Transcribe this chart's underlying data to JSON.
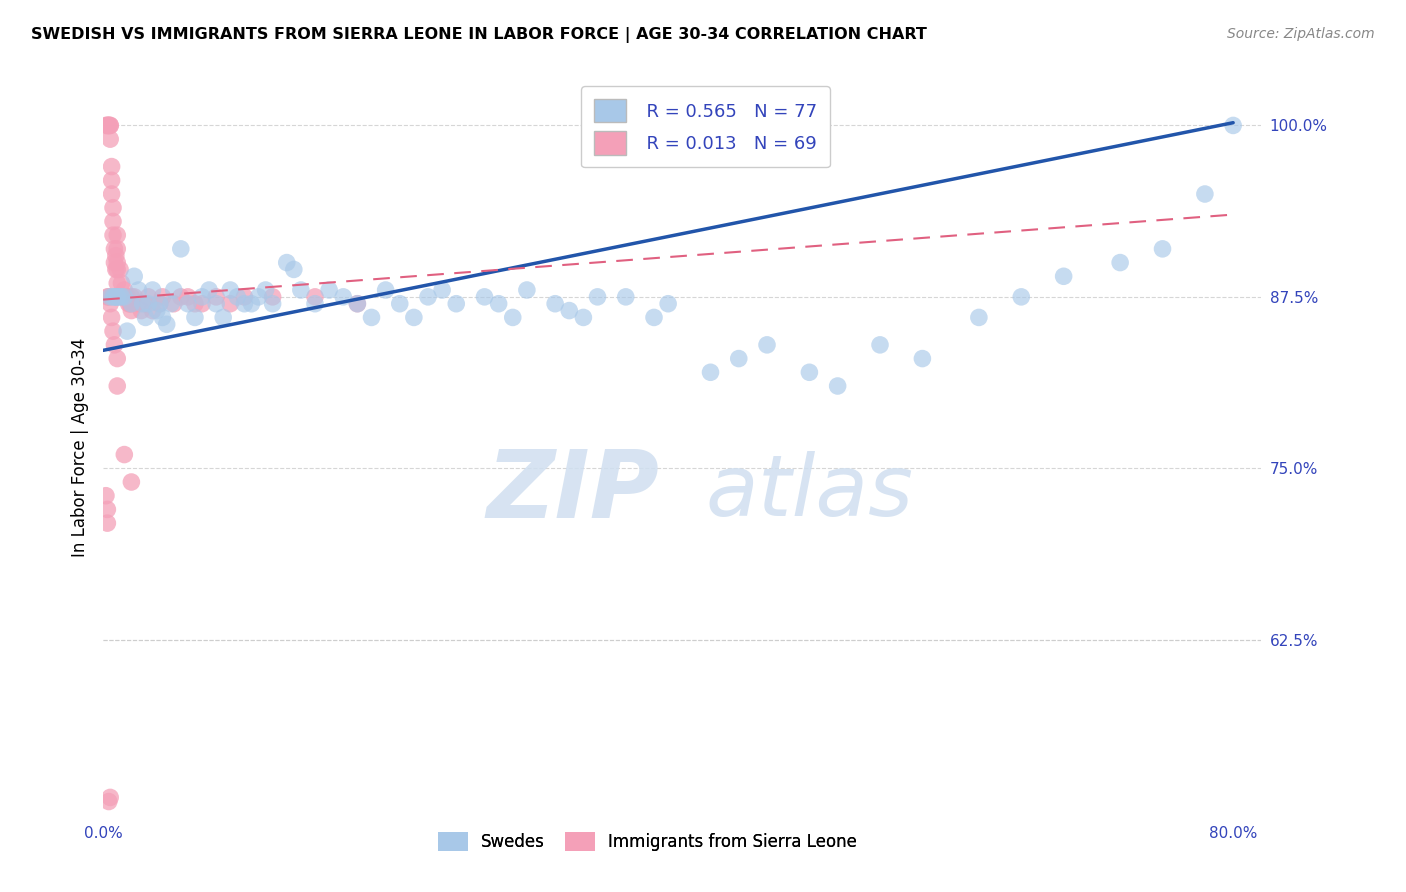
{
  "title": "SWEDISH VS IMMIGRANTS FROM SIERRA LEONE IN LABOR FORCE | AGE 30-34 CORRELATION CHART",
  "source": "Source: ZipAtlas.com",
  "ylabel": "In Labor Force | Age 30-34",
  "xlim": [
    0.0,
    0.82
  ],
  "ylim": [
    0.495,
    1.035
  ],
  "xticks": [
    0.0,
    0.1,
    0.2,
    0.3,
    0.4,
    0.5,
    0.6,
    0.7,
    0.8
  ],
  "xticklabels": [
    "0.0%",
    "",
    "",
    "",
    "",
    "",
    "",
    "",
    "80.0%"
  ],
  "yticks_right": [
    0.625,
    0.75,
    0.875,
    1.0
  ],
  "ytick_labels_right": [
    "62.5%",
    "75.0%",
    "87.5%",
    "100.0%"
  ],
  "legend_label1": "Swedes",
  "legend_label2": "Immigrants from Sierra Leone",
  "R_swedes": 0.565,
  "N_swedes": 77,
  "R_immigrants": 0.013,
  "N_immigrants": 69,
  "blue_color": "#a8c8e8",
  "pink_color": "#f4a0b8",
  "blue_line_color": "#2255aa",
  "pink_line_color": "#e06080",
  "grid_color": "#cccccc",
  "blue_line_x": [
    0.0,
    0.8
  ],
  "blue_line_y": [
    0.836,
    1.002
  ],
  "pink_line_x": [
    0.0,
    0.8
  ],
  "pink_line_y": [
    0.873,
    0.935
  ],
  "swedes_x": [
    0.005,
    0.007,
    0.008,
    0.009,
    0.01,
    0.01,
    0.012,
    0.013,
    0.015,
    0.017,
    0.02,
    0.022,
    0.025,
    0.028,
    0.03,
    0.032,
    0.035,
    0.038,
    0.04,
    0.042,
    0.045,
    0.048,
    0.05,
    0.055,
    0.06,
    0.065,
    0.07,
    0.075,
    0.08,
    0.085,
    0.09,
    0.095,
    0.1,
    0.105,
    0.11,
    0.115,
    0.12,
    0.13,
    0.135,
    0.14,
    0.15,
    0.16,
    0.17,
    0.18,
    0.19,
    0.2,
    0.21,
    0.22,
    0.23,
    0.24,
    0.25,
    0.27,
    0.28,
    0.29,
    0.3,
    0.32,
    0.33,
    0.34,
    0.35,
    0.37,
    0.39,
    0.4,
    0.43,
    0.45,
    0.47,
    0.5,
    0.52,
    0.55,
    0.58,
    0.62,
    0.65,
    0.68,
    0.72,
    0.75,
    0.78,
    0.8
  ],
  "swedes_y": [
    0.875,
    0.875,
    0.875,
    0.875,
    0.875,
    0.875,
    0.875,
    0.875,
    0.875,
    0.85,
    0.87,
    0.89,
    0.88,
    0.87,
    0.86,
    0.87,
    0.88,
    0.865,
    0.87,
    0.86,
    0.855,
    0.87,
    0.88,
    0.91,
    0.87,
    0.86,
    0.875,
    0.88,
    0.87,
    0.86,
    0.88,
    0.875,
    0.87,
    0.87,
    0.875,
    0.88,
    0.87,
    0.9,
    0.895,
    0.88,
    0.87,
    0.88,
    0.875,
    0.87,
    0.86,
    0.88,
    0.87,
    0.86,
    0.875,
    0.88,
    0.87,
    0.875,
    0.87,
    0.86,
    0.88,
    0.87,
    0.865,
    0.86,
    0.875,
    0.875,
    0.86,
    0.87,
    0.82,
    0.83,
    0.84,
    0.82,
    0.81,
    0.84,
    0.83,
    0.86,
    0.875,
    0.89,
    0.9,
    0.91,
    0.95,
    1.0
  ],
  "immigrants_x": [
    0.002,
    0.003,
    0.003,
    0.004,
    0.004,
    0.005,
    0.005,
    0.005,
    0.006,
    0.006,
    0.006,
    0.007,
    0.007,
    0.007,
    0.008,
    0.008,
    0.009,
    0.009,
    0.01,
    0.01,
    0.01,
    0.01,
    0.01,
    0.012,
    0.013,
    0.014,
    0.015,
    0.016,
    0.017,
    0.018,
    0.019,
    0.02,
    0.02,
    0.02,
    0.022,
    0.025,
    0.027,
    0.03,
    0.032,
    0.035,
    0.04,
    0.042,
    0.05,
    0.055,
    0.06,
    0.065,
    0.07,
    0.08,
    0.09,
    0.1,
    0.12,
    0.15,
    0.18,
    0.003,
    0.004,
    0.005,
    0.006,
    0.007,
    0.008,
    0.01,
    0.01,
    0.015,
    0.02,
    0.002,
    0.003,
    0.003,
    0.004,
    0.005
  ],
  "immigrants_y": [
    1.0,
    1.0,
    1.0,
    1.0,
    1.0,
    1.0,
    1.0,
    0.99,
    0.97,
    0.96,
    0.95,
    0.94,
    0.93,
    0.92,
    0.91,
    0.9,
    0.905,
    0.895,
    0.92,
    0.91,
    0.9,
    0.895,
    0.885,
    0.895,
    0.885,
    0.875,
    0.88,
    0.875,
    0.875,
    0.87,
    0.87,
    0.875,
    0.87,
    0.865,
    0.875,
    0.87,
    0.865,
    0.87,
    0.875,
    0.865,
    0.87,
    0.875,
    0.87,
    0.875,
    0.875,
    0.87,
    0.87,
    0.875,
    0.87,
    0.875,
    0.875,
    0.875,
    0.87,
    0.875,
    0.875,
    0.87,
    0.86,
    0.85,
    0.84,
    0.83,
    0.81,
    0.76,
    0.74,
    0.73,
    0.72,
    0.71,
    0.507,
    0.51
  ]
}
